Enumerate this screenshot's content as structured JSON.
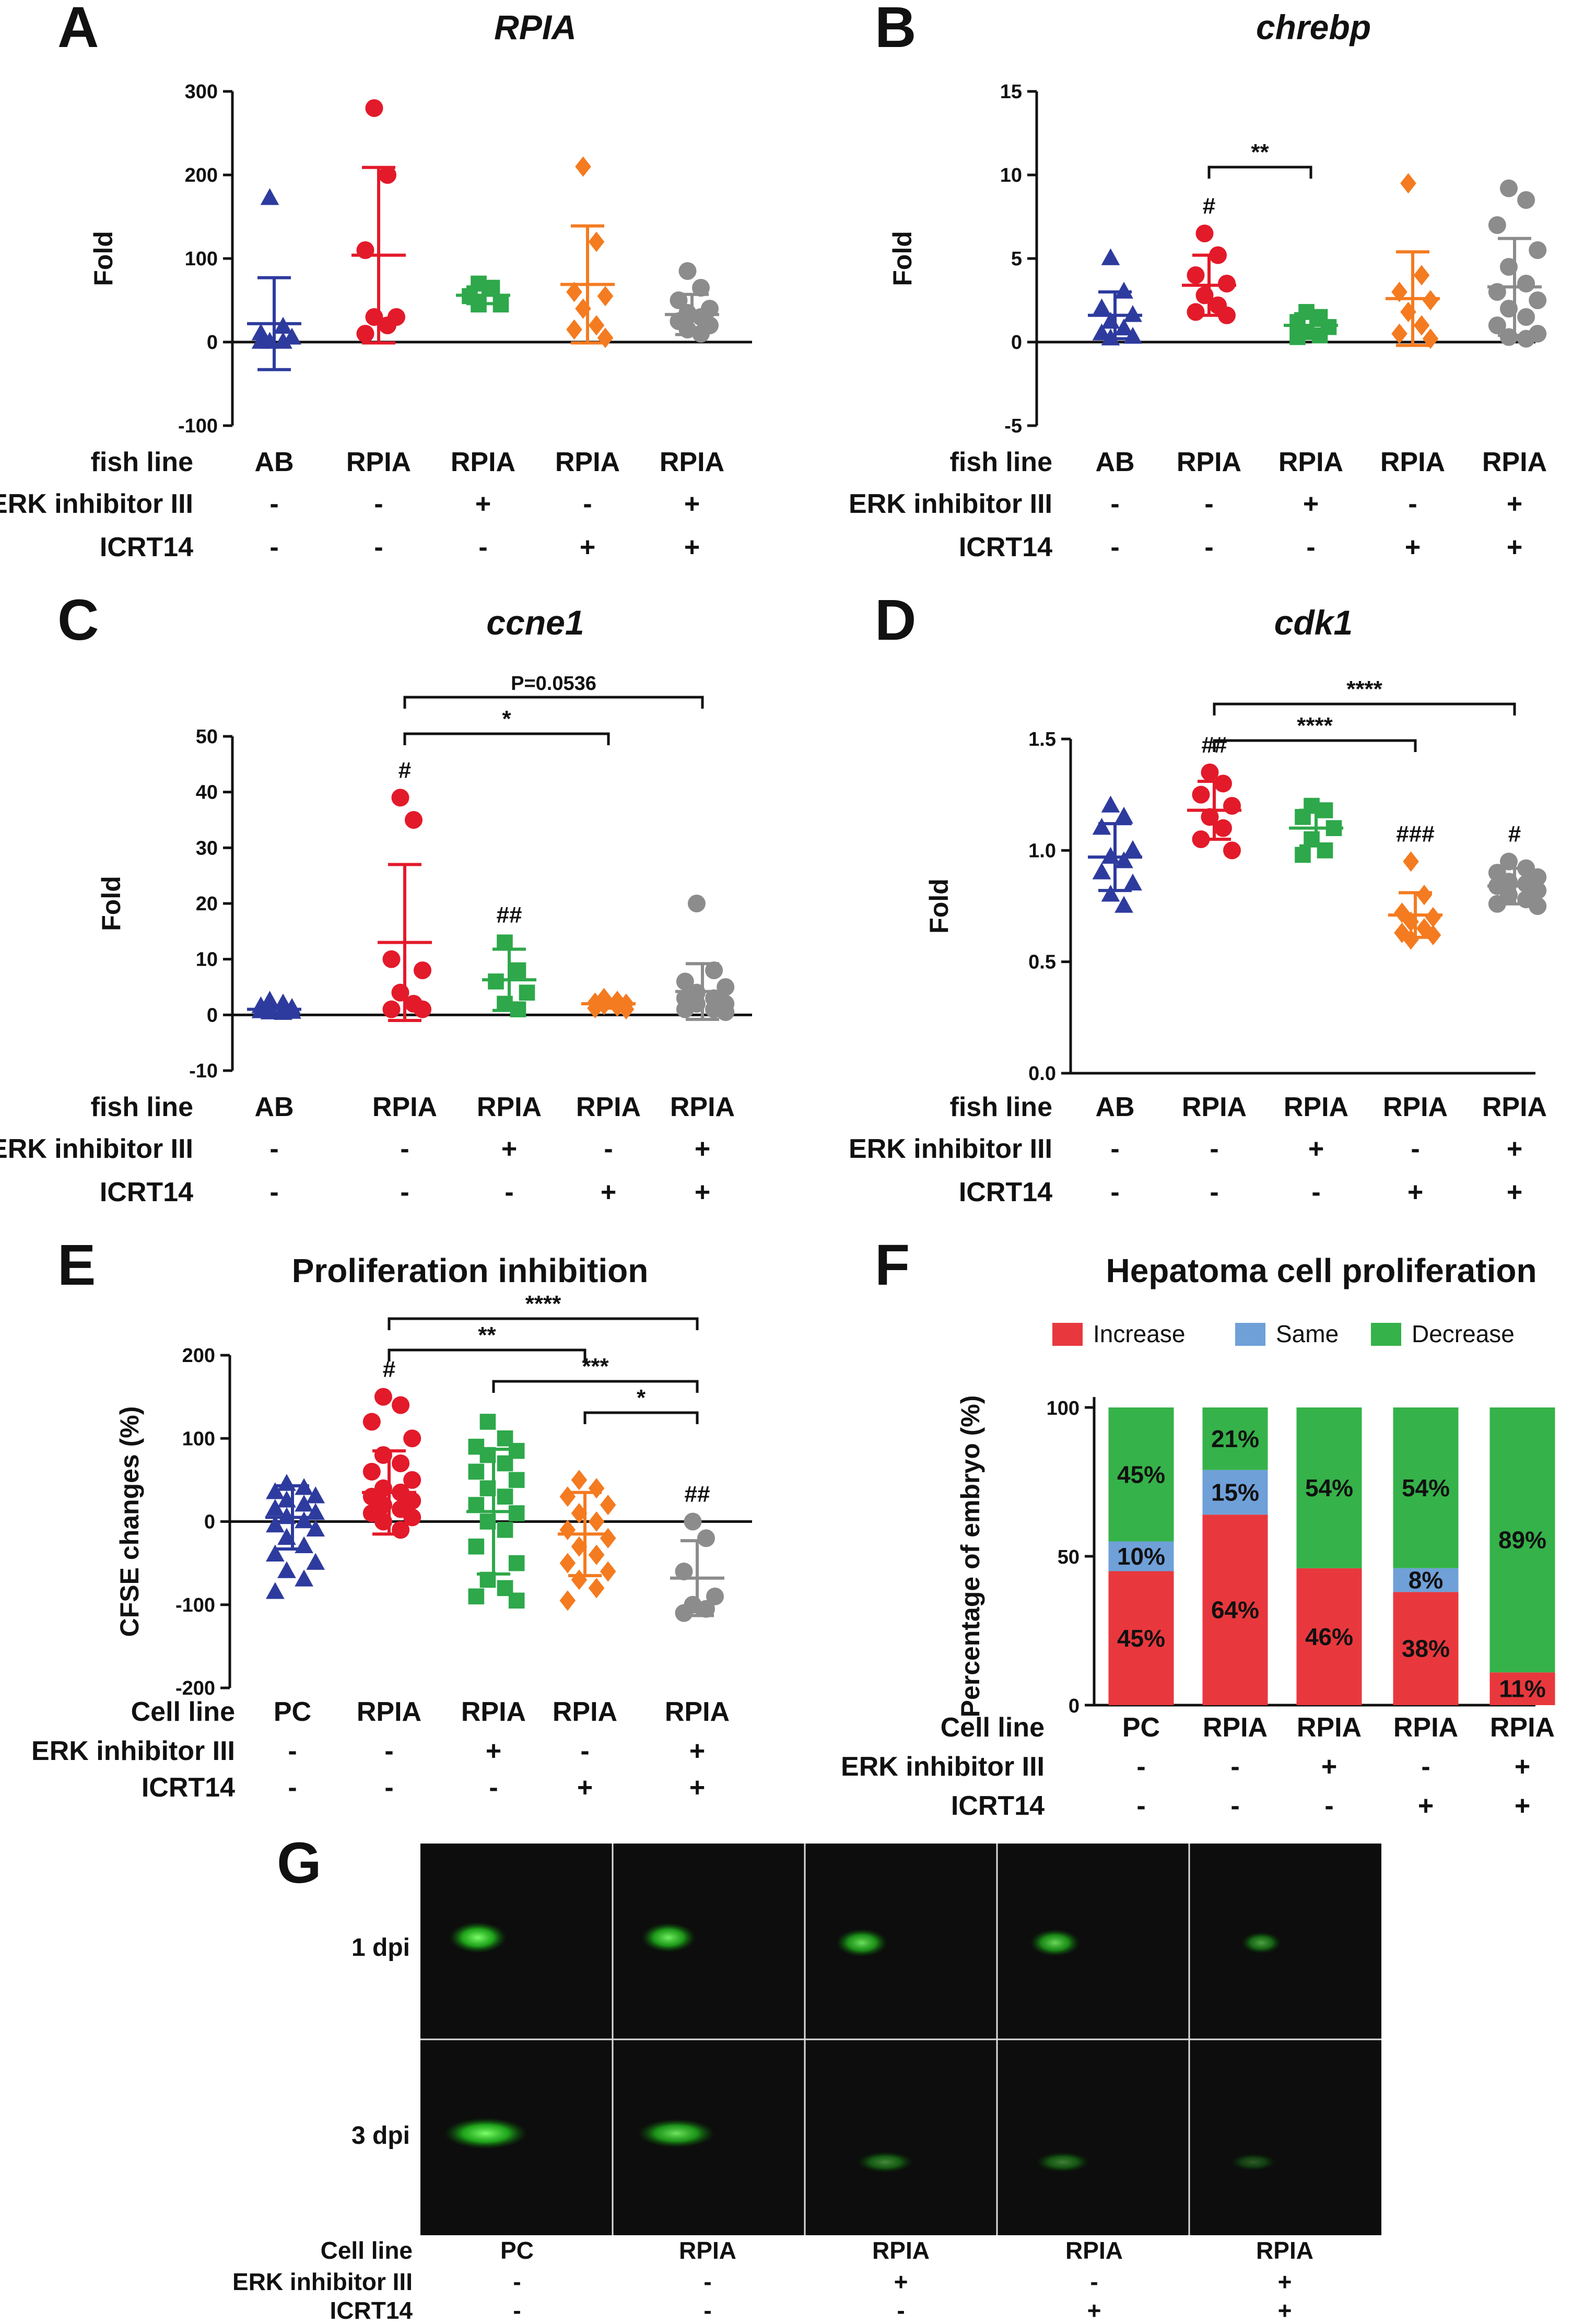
{
  "colors": {
    "AB": "#2e3b9e",
    "RPIA": "#e31a2a",
    "RPIA_ERK": "#2ea84a",
    "RPIA_ICRT": "#f47b20",
    "RPIA_BOTH": "#8c8c8c",
    "increase": "#e8383d",
    "same": "#6fa0d8",
    "decrease": "#36b24a"
  },
  "conditions": {
    "row_labels_fish": [
      "fish line",
      "ERK inhibitor III",
      "ICRT14"
    ],
    "row_labels_cell": [
      "Cell line",
      "ERK inhibitor III",
      "ICRT14"
    ],
    "fish_line": [
      "AB",
      "RPIA",
      "RPIA",
      "RPIA",
      "RPIA"
    ],
    "cell_line": [
      "PC",
      "RPIA",
      "RPIA",
      "RPIA",
      "RPIA"
    ],
    "erk": [
      "-",
      "-",
      "+",
      "-",
      "+"
    ],
    "icrt": [
      "-",
      "-",
      "-",
      "+",
      "+"
    ]
  },
  "chart_data": [
    {
      "panel": "A",
      "type": "scatter",
      "title": "RPIA",
      "ylabel": "Fold",
      "ylim": [
        -100,
        300
      ],
      "yticks": [
        "-100",
        "0",
        "100",
        "200",
        "300"
      ],
      "ytick_values": [
        -100,
        0,
        100,
        200,
        300
      ],
      "groups": [
        {
          "marker": "triangle",
          "color_key": "AB",
          "mean": 22,
          "sd": 55,
          "points": [
            172,
            18,
            10,
            5,
            0,
            0,
            0
          ]
        },
        {
          "marker": "circle",
          "color_key": "RPIA",
          "mean": 104,
          "sd": 105,
          "points": [
            280,
            200,
            110,
            30,
            30,
            20,
            10
          ]
        },
        {
          "marker": "square",
          "color_key": "RPIA_ERK",
          "mean": 56,
          "sd": 10,
          "points": [
            70,
            65,
            55,
            45,
            45
          ]
        },
        {
          "marker": "diamond",
          "color_key": "RPIA_ICRT",
          "mean": 69,
          "sd": 70,
          "points": [
            210,
            120,
            60,
            55,
            40,
            20,
            15,
            5
          ]
        },
        {
          "marker": "circle",
          "color_key": "RPIA_BOTH",
          "mean": 33,
          "sd": 24,
          "points": [
            85,
            65,
            50,
            40,
            35,
            30,
            25,
            20,
            15,
            10
          ]
        }
      ],
      "hash_labels": [],
      "brackets": []
    },
    {
      "panel": "B",
      "type": "scatter",
      "title": "chrebp",
      "ylabel": "Fold",
      "ylim": [
        -5,
        15
      ],
      "yticks": [
        "-5",
        "0",
        "5",
        "10",
        "15"
      ],
      "ytick_values": [
        -5,
        0,
        5,
        10,
        15
      ],
      "groups": [
        {
          "marker": "triangle",
          "color_key": "AB",
          "mean": 1.6,
          "sd": 1.4,
          "points": [
            5.0,
            3.0,
            2.0,
            1.6,
            1.2,
            0.8,
            0.5,
            0.3,
            0.2
          ]
        },
        {
          "marker": "circle",
          "color_key": "RPIA",
          "mean": 3.4,
          "sd": 1.8,
          "points": [
            6.5,
            5.2,
            4.0,
            3.5,
            2.8,
            2.2,
            1.8,
            1.6
          ]
        },
        {
          "marker": "square",
          "color_key": "RPIA_ERK",
          "mean": 1.0,
          "sd": 0.7,
          "points": [
            1.8,
            1.5,
            1.2,
            0.9,
            0.6,
            0.4,
            0.3
          ]
        },
        {
          "marker": "diamond",
          "color_key": "RPIA_ICRT",
          "mean": 2.6,
          "sd": 2.8,
          "points": [
            9.5,
            4.0,
            3.0,
            2.5,
            1.8,
            1.0,
            0.5,
            0.2
          ]
        },
        {
          "marker": "circle",
          "color_key": "RPIA_BOTH",
          "mean": 3.3,
          "sd": 2.9,
          "points": [
            9.2,
            8.5,
            7.0,
            5.5,
            4.5,
            3.5,
            3.0,
            2.5,
            2.0,
            1.5,
            1.0,
            0.5,
            0.3,
            0.2
          ]
        }
      ],
      "hash_labels": [
        {
          "group": 1,
          "text": "#"
        }
      ],
      "brackets": [
        {
          "from": 1,
          "to": 2,
          "text": "**",
          "level": 0
        }
      ]
    },
    {
      "panel": "C",
      "type": "scatter",
      "title": "ccne1",
      "ylabel": "Fold",
      "ylim": [
        -10,
        50
      ],
      "yticks": [
        "-10",
        "0",
        "10",
        "20",
        "30",
        "40",
        "50"
      ],
      "ytick_values": [
        -10,
        0,
        10,
        20,
        30,
        40,
        50
      ],
      "groups": [
        {
          "marker": "triangle",
          "color_key": "AB",
          "mean": 1.0,
          "sd": 0.6,
          "points": [
            2.5,
            2.0,
            1.5,
            1.2,
            1.0,
            0.8,
            0.6,
            0.5,
            0.4,
            0.3
          ]
        },
        {
          "marker": "circle",
          "color_key": "RPIA",
          "mean": 13,
          "sd": 14,
          "points": [
            39,
            35,
            10,
            8,
            4,
            2,
            1,
            1
          ]
        },
        {
          "marker": "square",
          "color_key": "RPIA_ERK",
          "mean": 6.3,
          "sd": 5.5,
          "points": [
            13,
            8,
            6,
            4,
            2,
            1
          ]
        },
        {
          "marker": "diamond",
          "color_key": "RPIA_ICRT",
          "mean": 2.0,
          "sd": 0.8,
          "points": [
            3.0,
            2.5,
            2.2,
            2.0,
            1.8,
            1.5,
            1.2,
            1.0
          ]
        },
        {
          "marker": "circle",
          "color_key": "RPIA_BOTH",
          "mean": 4.2,
          "sd": 5.0,
          "points": [
            20,
            8,
            6,
            5,
            4,
            3,
            3,
            2,
            2,
            1,
            1,
            0.5
          ]
        }
      ],
      "hash_labels": [
        {
          "group": 1,
          "text": "#"
        },
        {
          "group": 2,
          "text": "##"
        }
      ],
      "brackets": [
        {
          "from": 1,
          "to": 3,
          "text": "*",
          "level": 0
        },
        {
          "from": 1,
          "to": 4,
          "text": "P=0.0536",
          "level": 1
        }
      ]
    },
    {
      "panel": "D",
      "type": "scatter",
      "title": "cdk1",
      "ylabel": "Fold",
      "ylim": [
        0,
        1.5
      ],
      "yticks": [
        "0.0",
        "0.5",
        "1.0",
        "1.5"
      ],
      "ytick_values": [
        0,
        0.5,
        1.0,
        1.5
      ],
      "groups": [
        {
          "marker": "triangle",
          "color_key": "AB",
          "mean": 0.97,
          "sd": 0.15,
          "points": [
            1.2,
            1.15,
            1.1,
            1.0,
            0.97,
            0.95,
            0.9,
            0.85,
            0.8,
            0.75
          ]
        },
        {
          "marker": "circle",
          "color_key": "RPIA",
          "mean": 1.18,
          "sd": 0.13,
          "points": [
            1.35,
            1.3,
            1.25,
            1.2,
            1.15,
            1.1,
            1.05,
            1.0
          ]
        },
        {
          "marker": "square",
          "color_key": "RPIA_ERK",
          "mean": 1.1,
          "sd": 0.08,
          "points": [
            1.2,
            1.18,
            1.15,
            1.1,
            1.05,
            1.0,
            0.98
          ]
        },
        {
          "marker": "diamond",
          "color_key": "RPIA_ICRT",
          "mean": 0.71,
          "sd": 0.1,
          "points": [
            0.95,
            0.8,
            0.72,
            0.7,
            0.68,
            0.65,
            0.63,
            0.62,
            0.6
          ]
        },
        {
          "marker": "circle",
          "color_key": "RPIA_BOTH",
          "mean": 0.84,
          "sd": 0.08,
          "points": [
            0.95,
            0.92,
            0.9,
            0.88,
            0.86,
            0.85,
            0.84,
            0.82,
            0.8,
            0.78,
            0.76,
            0.75
          ]
        }
      ],
      "hash_labels": [
        {
          "group": 1,
          "text": "##"
        },
        {
          "group": 3,
          "text": "###"
        },
        {
          "group": 4,
          "text": "#"
        }
      ],
      "brackets": [
        {
          "from": 1,
          "to": 3,
          "text": "****",
          "level": 0
        },
        {
          "from": 1,
          "to": 4,
          "text": "****",
          "level": 1
        }
      ]
    },
    {
      "panel": "E",
      "type": "scatter",
      "title": "Proliferation inhibition",
      "ylabel": "CFSE changes (%)",
      "ylim": [
        -200,
        200
      ],
      "yticks": [
        "-200",
        "-100",
        "0",
        "100",
        "200"
      ],
      "ytick_values": [
        -200,
        -100,
        0,
        100,
        200
      ],
      "groups": [
        {
          "marker": "triangle",
          "color_key": "AB",
          "mean": 5,
          "sd": 38,
          "points": [
            45,
            40,
            35,
            30,
            25,
            20,
            15,
            10,
            5,
            0,
            -5,
            -10,
            -20,
            -30,
            -40,
            -50,
            -60,
            -70,
            -85
          ]
        },
        {
          "marker": "circle",
          "color_key": "RPIA",
          "mean": 35,
          "sd": 50,
          "points": [
            150,
            140,
            120,
            100,
            80,
            70,
            60,
            50,
            40,
            35,
            30,
            25,
            20,
            15,
            10,
            5,
            0,
            -10
          ]
        },
        {
          "marker": "square",
          "color_key": "RPIA_ERK",
          "mean": 12,
          "sd": 75,
          "points": [
            120,
            100,
            90,
            85,
            80,
            70,
            60,
            50,
            40,
            30,
            20,
            10,
            0,
            -10,
            -30,
            -50,
            -70,
            -80,
            -90,
            -95
          ]
        },
        {
          "marker": "diamond",
          "color_key": "RPIA_ICRT",
          "mean": -15,
          "sd": 50,
          "points": [
            50,
            40,
            30,
            20,
            10,
            0,
            -10,
            -20,
            -30,
            -40,
            -50,
            -60,
            -70,
            -80,
            -95
          ]
        },
        {
          "marker": "circle",
          "color_key": "RPIA_BOTH",
          "mean": -68,
          "sd": 45,
          "points": [
            0,
            -20,
            -60,
            -90,
            -100,
            -105,
            -110
          ]
        }
      ],
      "hash_labels": [
        {
          "group": 1,
          "text": "#"
        },
        {
          "group": 4,
          "text": "##"
        }
      ],
      "brackets": [
        {
          "from": 1,
          "to": 4,
          "text": "****",
          "level": 3
        },
        {
          "from": 1,
          "to": 3,
          "text": "**",
          "level": 2
        },
        {
          "from": 2,
          "to": 4,
          "text": "***",
          "level": 1
        },
        {
          "from": 3,
          "to": 4,
          "text": "*",
          "level": 0
        }
      ]
    },
    {
      "panel": "F",
      "type": "bar",
      "stacked": true,
      "title": "Hepatoma cell proliferation",
      "ylabel": "Percentage of embryo (%)",
      "ylim": [
        0,
        100
      ],
      "yticks": [
        "0",
        "50",
        "100"
      ],
      "ytick_values": [
        0,
        50,
        100
      ],
      "legend": [
        "Increase",
        "Same",
        "Decrease"
      ],
      "legend_position": "top",
      "series": [
        {
          "name": "Increase",
          "values": [
            45,
            64,
            46,
            38,
            11
          ],
          "labels": [
            "45%",
            "64%",
            "46%",
            "38%",
            "11%"
          ]
        },
        {
          "name": "Same",
          "values": [
            10,
            15,
            0,
            8,
            0
          ],
          "labels": [
            "10%",
            "15%",
            "",
            "8%",
            ""
          ]
        },
        {
          "name": "Decrease",
          "values": [
            45,
            21,
            54,
            54,
            89
          ],
          "labels": [
            "45%",
            "21%",
            "54%",
            "54%",
            "89%"
          ]
        }
      ]
    }
  ],
  "panel_letters": [
    "A",
    "B",
    "C",
    "D",
    "E",
    "F",
    "G"
  ],
  "panel_g": {
    "rows": [
      "1 dpi",
      "3 dpi"
    ],
    "intensity_1dpi": [
      1.0,
      0.9,
      0.8,
      0.75,
      0.4
    ],
    "intensity_3dpi": [
      1.0,
      0.85,
      0.35,
      0.3,
      0.1
    ]
  }
}
